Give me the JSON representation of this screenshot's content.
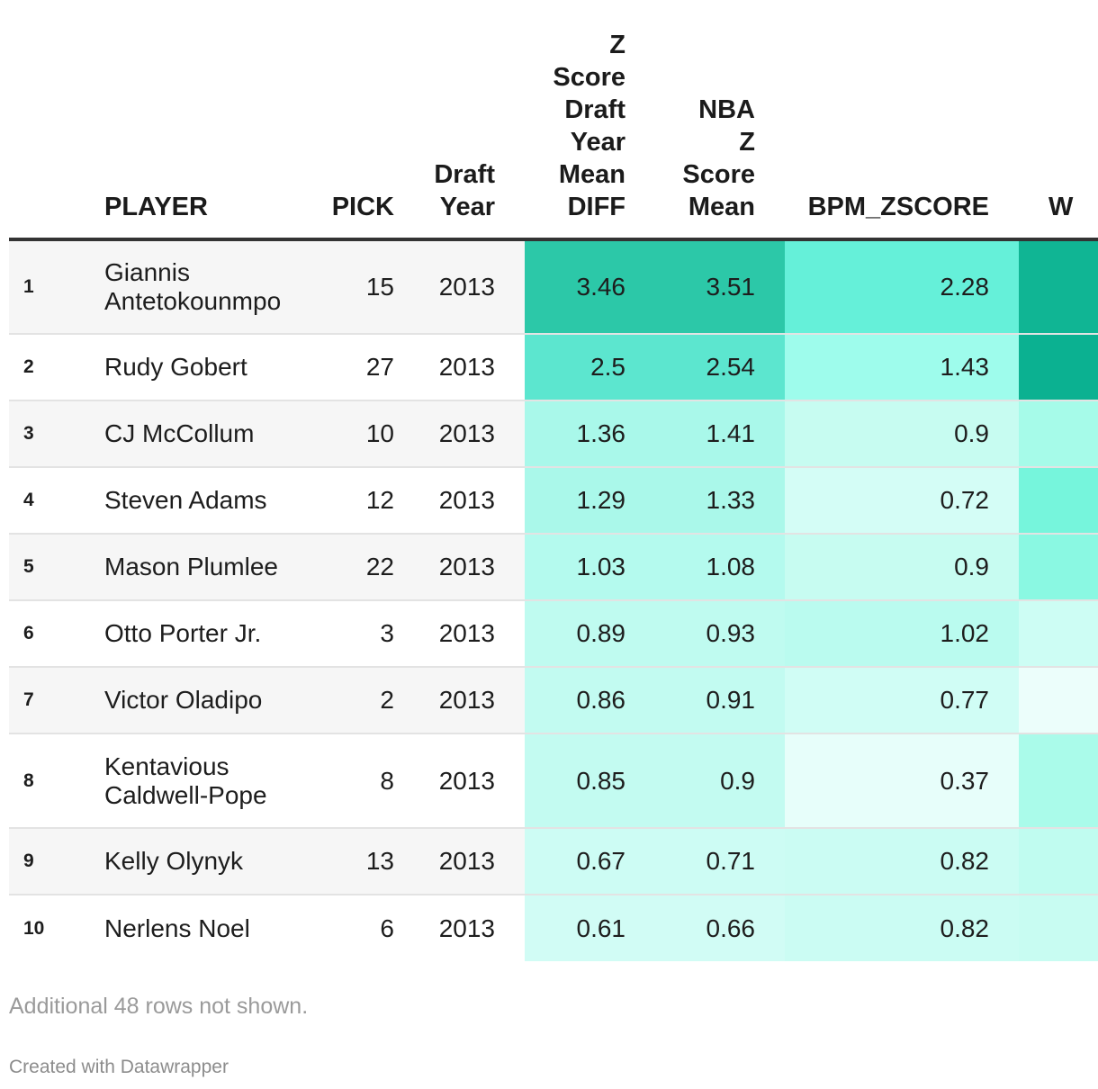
{
  "chart_data": {
    "type": "table",
    "columns": [
      "",
      "PLAYER",
      "PICK",
      "Draft Year",
      "Z Score Draft Year Mean DIFF",
      "NBA Z Score Mean",
      "BPM_ZSCORE",
      "W"
    ],
    "header_lines": {
      "pick": [
        "PICK"
      ],
      "draft_year": [
        "Draft",
        "Year"
      ],
      "z_score": [
        "Z",
        "Score",
        "Draft",
        "Year",
        "Mean",
        "DIFF"
      ],
      "nba_z": [
        "NBA",
        "Z",
        "Score",
        "Mean"
      ],
      "bpm": [
        "BPM_ZSCORE"
      ],
      "w": [
        "W"
      ]
    },
    "rows": [
      {
        "rank": "1",
        "player": "Giannis Antetokounmpo",
        "pick": "15",
        "draft_year": "2013",
        "z_diff": "3.46",
        "nba_z": "3.51",
        "bpm": "2.28"
      },
      {
        "rank": "2",
        "player": "Rudy Gobert",
        "pick": "27",
        "draft_year": "2013",
        "z_diff": "2.5",
        "nba_z": "2.54",
        "bpm": "1.43"
      },
      {
        "rank": "3",
        "player": "CJ McCollum",
        "pick": "10",
        "draft_year": "2013",
        "z_diff": "1.36",
        "nba_z": "1.41",
        "bpm": "0.9"
      },
      {
        "rank": "4",
        "player": "Steven Adams",
        "pick": "12",
        "draft_year": "2013",
        "z_diff": "1.29",
        "nba_z": "1.33",
        "bpm": "0.72"
      },
      {
        "rank": "5",
        "player": "Mason Plumlee",
        "pick": "22",
        "draft_year": "2013",
        "z_diff": "1.03",
        "nba_z": "1.08",
        "bpm": "0.9"
      },
      {
        "rank": "6",
        "player": "Otto Porter Jr.",
        "pick": "3",
        "draft_year": "2013",
        "z_diff": "0.89",
        "nba_z": "0.93",
        "bpm": "1.02"
      },
      {
        "rank": "7",
        "player": "Victor Oladipo",
        "pick": "2",
        "draft_year": "2013",
        "z_diff": "0.86",
        "nba_z": "0.91",
        "bpm": "0.77"
      },
      {
        "rank": "8",
        "player": "Kentavious Caldwell-Pope",
        "pick": "8",
        "draft_year": "2013",
        "z_diff": "0.85",
        "nba_z": "0.9",
        "bpm": "0.37"
      },
      {
        "rank": "9",
        "player": "Kelly Olynyk",
        "pick": "13",
        "draft_year": "2013",
        "z_diff": "0.67",
        "nba_z": "0.71",
        "bpm": "0.82"
      },
      {
        "rank": "10",
        "player": "Nerlens Noel",
        "pick": "6",
        "draft_year": "2013",
        "z_diff": "0.61",
        "nba_z": "0.66",
        "bpm": "0.82"
      }
    ],
    "heat_colors": {
      "z_diff": [
        "#2cc8a8",
        "#5ce6cf",
        "#a9f8ea",
        "#aaf8ea",
        "#b4faee",
        "#bffbf0",
        "#c2fbf1",
        "#c3fbf1",
        "#cdfcf4",
        "#d1fcf5"
      ],
      "nba_z": [
        "#2cc8a8",
        "#5ce6cf",
        "#a9f8ea",
        "#aaf8ea",
        "#b4faee",
        "#bffbf0",
        "#c2fbf1",
        "#c3fbf1",
        "#cdfcf4",
        "#d1fcf5"
      ],
      "bpm": [
        "#65f0d9",
        "#9efcec",
        "#c7fcf1",
        "#d4fdf6",
        "#c7fcf1",
        "#bafbef",
        "#d0fdf5",
        "#e7fefa",
        "#cbfcf3",
        "#cbfcf3"
      ],
      "w": [
        "#10b594",
        "#0bb191",
        "#a6fbe9",
        "#76f5dc",
        "#8af8e2",
        "#cdfdf4",
        "#ecfefb",
        "#aafbea",
        "#c0fcf0",
        "#c8fcf2"
      ]
    },
    "row_heights": [
      105,
      74,
      74,
      74,
      74,
      74,
      74,
      105,
      74,
      74
    ]
  },
  "footer": {
    "note": "Additional 48 rows not shown.",
    "credit": "Created with Datawrapper"
  }
}
